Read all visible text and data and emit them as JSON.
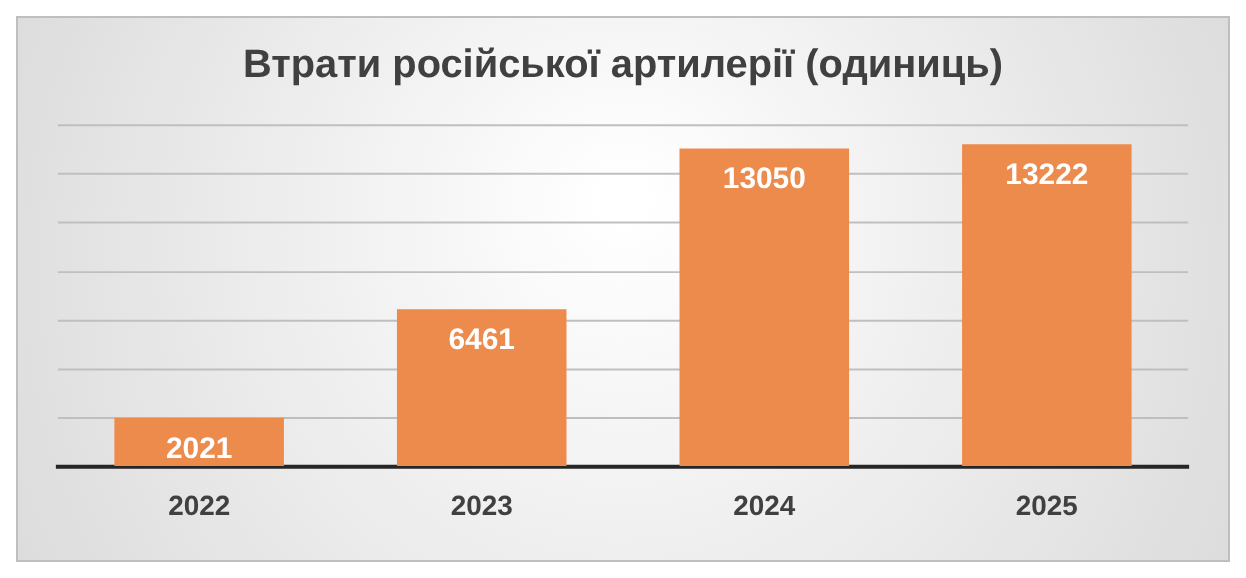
{
  "chart_data": {
    "type": "bar",
    "title": "Втрати російської артилерії (одиниць)",
    "categories": [
      "2022",
      "2023",
      "2024",
      "2025"
    ],
    "values": [
      2021,
      6461,
      13050,
      13222
    ],
    "color": "#ed8b4d",
    "ylim": [
      0,
      14000
    ],
    "yticks": [
      {
        "value": 0,
        "label": null
      },
      {
        "value": 2000,
        "label": null
      },
      {
        "value": 4000,
        "label": null
      },
      {
        "value": 6000,
        "label": null
      },
      {
        "value": 8000,
        "label": null
      },
      {
        "value": 10000,
        "label": null
      },
      {
        "value": 12000,
        "label": null
      },
      {
        "value": 14000,
        "label": null
      }
    ],
    "tick_labels": "x",
    "grid": "y",
    "data_labels": true,
    "legend": false
  }
}
